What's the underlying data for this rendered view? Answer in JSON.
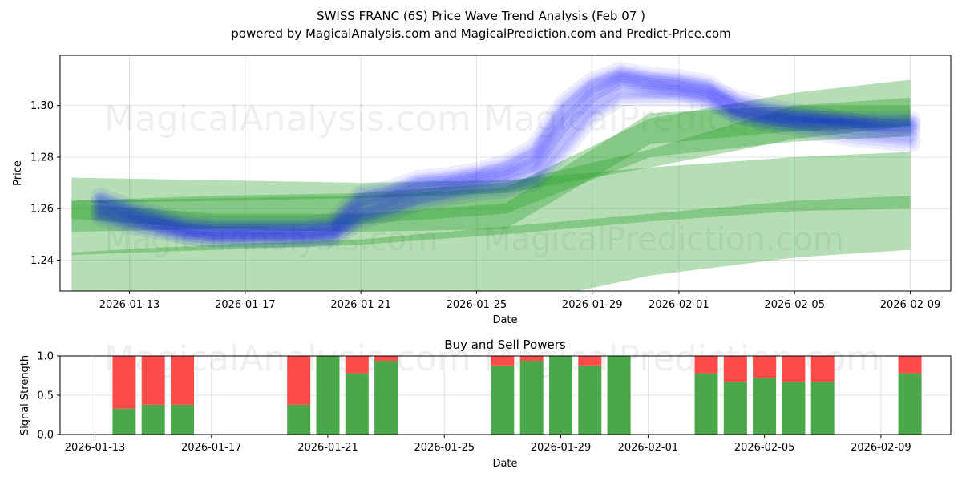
{
  "figure": {
    "title_line1": "SWISS FRANC (6S) Price Wave Trend Analysis (Feb 07 )",
    "title_line2": "powered by MagicalAnalysis.com and MagicalPrediction.com and Predict-Price.com",
    "watermarks": {
      "top_left": "MagicalAnalysis.com",
      "top_right": "MagicalPrediction.com",
      "mid_left": "MagicalAnalysis.com",
      "mid_right": "MagicalPrediction.com",
      "bottom_left": "MagicalAnalysis.com",
      "bottom_right": "MagicalPrediction.com"
    }
  },
  "chart_data": [
    {
      "type": "area",
      "title": "",
      "xlabel": "Date",
      "ylabel": "Price",
      "x_tick_labels": [
        "2026-01-13",
        "2026-01-17",
        "2026-01-21",
        "2026-01-25",
        "2026-01-29",
        "2026-02-01",
        "2026-02-05",
        "2026-02-09"
      ],
      "x_tick_days": [
        2,
        6,
        10,
        14,
        18,
        21,
        25,
        29
      ],
      "x_range_days": [
        -0.4,
        30.4
      ],
      "y_ticks": [
        1.24,
        1.26,
        1.28,
        1.3
      ],
      "y_tick_labels": [
        "1.24",
        "1.26",
        "1.28",
        "1.30"
      ],
      "ylim": [
        1.228,
        1.3195
      ],
      "grid": true,
      "colors": {
        "blue": "#0000ff",
        "green": "#2ca02c"
      },
      "blue_wave_series": [
        {
          "name": "wave-1",
          "x": [
            1,
            2,
            3,
            4,
            5,
            6,
            7,
            8,
            9,
            10,
            11,
            12,
            13,
            14,
            15,
            16,
            17,
            18,
            19,
            20,
            21,
            22,
            23,
            24,
            25,
            26,
            27,
            28,
            29
          ],
          "y": [
            1.262,
            1.258,
            1.255,
            1.252,
            1.251,
            1.251,
            1.251,
            1.251,
            1.252,
            1.262,
            1.265,
            1.269,
            1.27,
            1.272,
            1.274,
            1.279,
            1.295,
            1.306,
            1.311,
            1.309,
            1.308,
            1.306,
            1.302,
            1.299,
            1.297,
            1.295,
            1.293,
            1.291,
            1.29
          ]
        },
        {
          "name": "wave-2",
          "x": [
            1,
            2,
            3,
            4,
            5,
            6,
            7,
            8,
            9,
            10,
            11,
            12,
            13,
            14,
            15,
            16,
            17,
            18,
            19,
            20,
            21,
            22,
            23,
            24,
            25,
            26,
            27,
            28,
            29
          ],
          "y": [
            1.259,
            1.256,
            1.253,
            1.25,
            1.249,
            1.249,
            1.249,
            1.249,
            1.25,
            1.258,
            1.262,
            1.266,
            1.268,
            1.27,
            1.272,
            1.276,
            1.29,
            1.302,
            1.309,
            1.307,
            1.306,
            1.304,
            1.297,
            1.294,
            1.292,
            1.29,
            1.288,
            1.287,
            1.286
          ]
        },
        {
          "name": "wave-3",
          "x": [
            1,
            2,
            3,
            4,
            5,
            6,
            7,
            8,
            9,
            10,
            11,
            12,
            13,
            14,
            15,
            16,
            17,
            18,
            19,
            20,
            21,
            22,
            23,
            24,
            25,
            26,
            27,
            28,
            29
          ],
          "y": [
            1.264,
            1.26,
            1.257,
            1.254,
            1.253,
            1.253,
            1.253,
            1.253,
            1.254,
            1.265,
            1.267,
            1.271,
            1.272,
            1.274,
            1.277,
            1.283,
            1.3,
            1.309,
            1.313,
            1.311,
            1.31,
            1.308,
            1.3,
            1.297,
            1.295,
            1.294,
            1.293,
            1.292,
            1.292
          ]
        },
        {
          "name": "wave-4",
          "x": [
            1,
            2,
            3,
            4,
            5,
            6,
            7,
            8,
            9,
            10,
            11,
            12,
            13,
            14,
            15,
            16,
            17,
            18,
            19,
            20,
            21,
            22,
            23,
            24,
            25,
            26,
            27,
            28,
            29
          ],
          "y": [
            1.257,
            1.254,
            1.252,
            1.25,
            1.249,
            1.249,
            1.249,
            1.249,
            1.249,
            1.256,
            1.259,
            1.263,
            1.265,
            1.267,
            1.268,
            1.271,
            1.283,
            1.297,
            1.304,
            1.304,
            1.304,
            1.302,
            1.297,
            1.295,
            1.294,
            1.294,
            1.294,
            1.294,
            1.294
          ]
        }
      ],
      "green_band_series": [
        {
          "name": "band-1",
          "x": [
            0,
            5,
            10,
            15,
            20,
            25,
            29
          ],
          "lower": [
            1.262,
            1.263,
            1.264,
            1.266,
            1.276,
            1.287,
            1.292
          ],
          "upper": [
            1.263,
            1.265,
            1.266,
            1.27,
            1.283,
            1.3,
            1.303
          ]
        },
        {
          "name": "band-2",
          "x": [
            0,
            5,
            10,
            15,
            20,
            25,
            29
          ],
          "lower": [
            1.242,
            1.244,
            1.246,
            1.25,
            1.255,
            1.259,
            1.26
          ],
          "upper": [
            1.243,
            1.246,
            1.248,
            1.253,
            1.258,
            1.263,
            1.265
          ]
        },
        {
          "name": "band-3",
          "x": [
            0,
            5,
            10,
            15,
            20,
            25,
            29
          ],
          "lower": [
            1.222,
            1.218,
            1.214,
            1.222,
            1.234,
            1.241,
            1.244
          ],
          "upper": [
            1.272,
            1.271,
            1.27,
            1.271,
            1.276,
            1.28,
            1.282
          ]
        },
        {
          "name": "band-4",
          "x": [
            0,
            5,
            10,
            15,
            20,
            25,
            29
          ],
          "lower": [
            1.251,
            1.252,
            1.254,
            1.258,
            1.28,
            1.286,
            1.288
          ],
          "upper": [
            1.263,
            1.264,
            1.265,
            1.268,
            1.295,
            1.305,
            1.31
          ]
        },
        {
          "name": "band-5",
          "x": [
            0,
            5,
            10,
            15,
            20,
            25,
            29
          ],
          "lower": [
            1.256,
            1.252,
            1.251,
            1.252,
            1.285,
            1.29,
            1.292
          ],
          "upper": [
            1.262,
            1.258,
            1.258,
            1.262,
            1.297,
            1.3,
            1.3
          ]
        }
      ]
    },
    {
      "type": "bar",
      "title": "Buy and Sell Powers",
      "xlabel": "Date",
      "ylabel": "Signal Strength",
      "x_tick_labels": [
        "2026-01-13",
        "2026-01-17",
        "2026-01-21",
        "2026-01-25",
        "2026-01-29",
        "2026-02-01",
        "2026-02-05",
        "2026-02-09"
      ],
      "x_tick_days": [
        1,
        5,
        9,
        13,
        17,
        20,
        24,
        28
      ],
      "x_range_days": [
        -0.2,
        30.4
      ],
      "y_ticks": [
        0.0,
        0.5,
        1.0
      ],
      "y_tick_labels": [
        "0.0",
        "0.5",
        "1.0"
      ],
      "ylim": [
        0,
        1.0
      ],
      "grid": true,
      "colors": {
        "buy": "#4aa84a",
        "sell": "#ff4a4a"
      },
      "bars": [
        {
          "day": 2,
          "buy": 0.33
        },
        {
          "day": 3,
          "buy": 0.38
        },
        {
          "day": 4,
          "buy": 0.38
        },
        {
          "day": 8,
          "buy": 0.38
        },
        {
          "day": 9,
          "buy": 1.0
        },
        {
          "day": 10,
          "buy": 0.78
        },
        {
          "day": 11,
          "buy": 0.94
        },
        {
          "day": 15,
          "buy": 0.88
        },
        {
          "day": 16,
          "buy": 0.94
        },
        {
          "day": 17,
          "buy": 1.0
        },
        {
          "day": 18,
          "buy": 0.88
        },
        {
          "day": 19,
          "buy": 1.0
        },
        {
          "day": 22,
          "buy": 0.78
        },
        {
          "day": 23,
          "buy": 0.67
        },
        {
          "day": 24,
          "buy": 0.72
        },
        {
          "day": 25,
          "buy": 0.67
        },
        {
          "day": 26,
          "buy": 0.67
        },
        {
          "day": 29,
          "buy": 0.78
        }
      ]
    }
  ]
}
